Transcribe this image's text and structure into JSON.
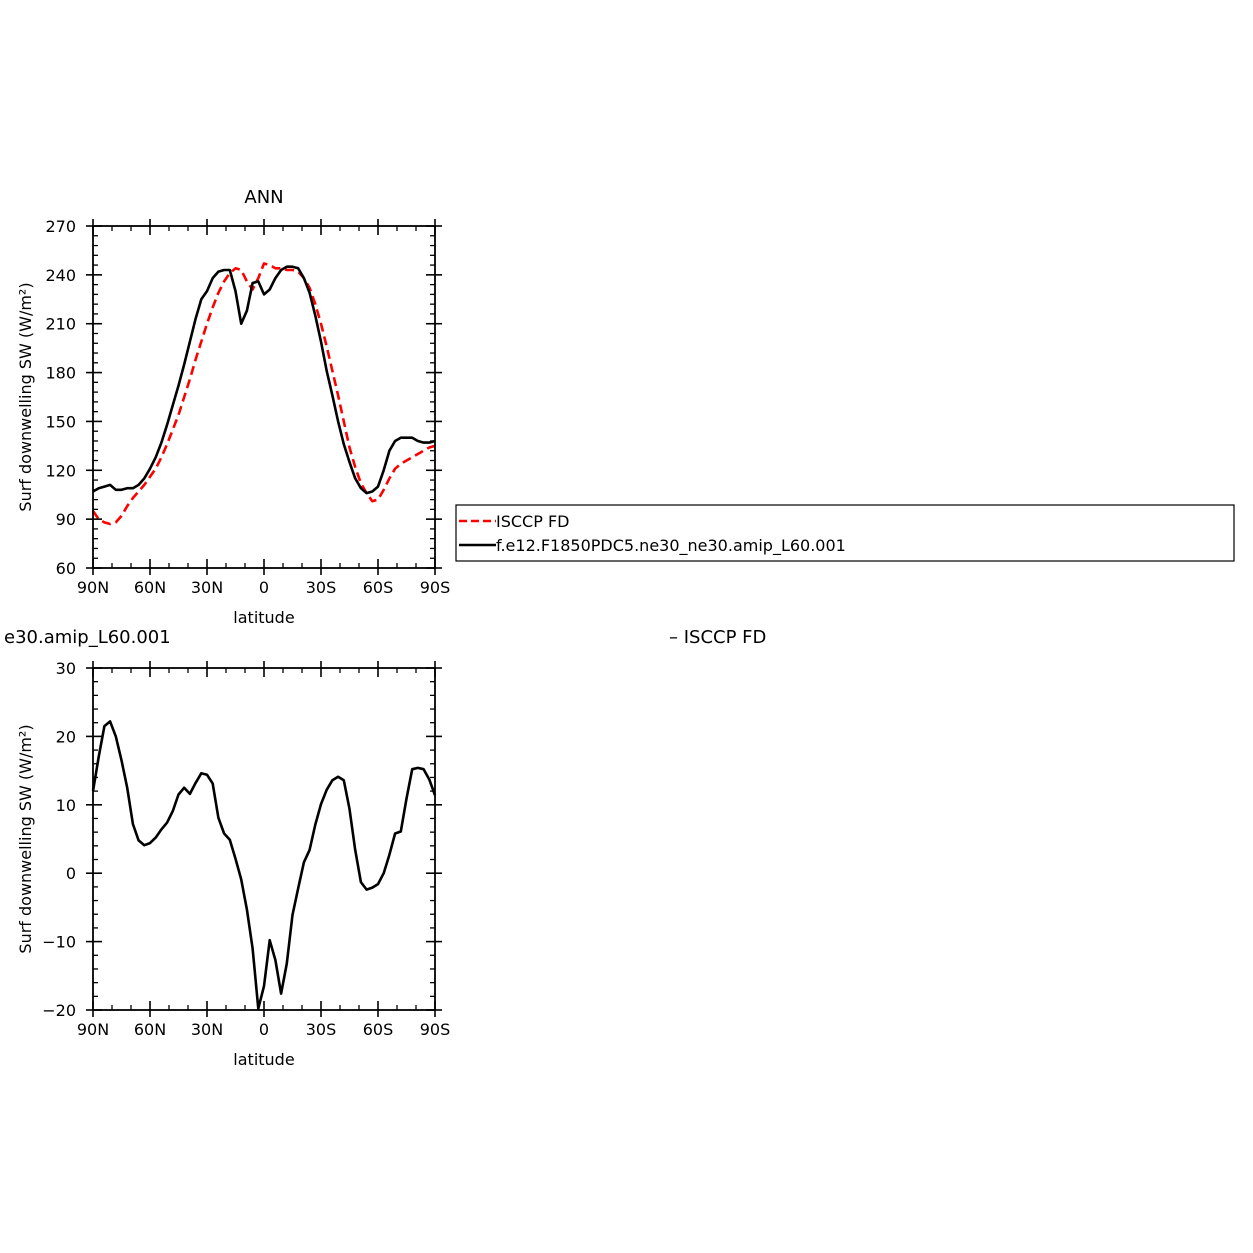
{
  "chart_data": [
    {
      "type": "line",
      "title": "ANN",
      "xlabel": "latitude",
      "ylabel": "Surf downwelling SW (W/m²)",
      "xlim": [
        -90,
        90
      ],
      "ylim": [
        60,
        270
      ],
      "x_ticks": [
        {
          "value": -90,
          "label": "90N"
        },
        {
          "value": -60,
          "label": "60N"
        },
        {
          "value": -30,
          "label": "30N"
        },
        {
          "value": 0,
          "label": "0"
        },
        {
          "value": 30,
          "label": "30S"
        },
        {
          "value": 60,
          "label": "60S"
        },
        {
          "value": 90,
          "label": "90S"
        }
      ],
      "y_ticks": [
        60,
        90,
        120,
        150,
        180,
        210,
        240,
        270
      ],
      "legend": {
        "placement": "right",
        "entries": [
          {
            "label": "ISCCP FD",
            "color": "#ff0000",
            "dash": "dashed"
          },
          {
            "label": "f.e12.F1850PDC5.ne30_ne30.amip_L60.001",
            "color": "#000000",
            "dash": "solid"
          }
        ]
      },
      "series": [
        {
          "name": "ISCCP FD",
          "color": "#ff0000",
          "dash": "dashed",
          "x": [
            -90,
            -87,
            -84,
            -81,
            -78,
            -75,
            -72,
            -69,
            -66,
            -63,
            -60,
            -57,
            -54,
            -51,
            -48,
            -45,
            -42,
            -39,
            -36,
            -33,
            -30,
            -27,
            -24,
            -21,
            -18,
            -15,
            -12,
            -9,
            -6,
            -3,
            0,
            3,
            6,
            9,
            12,
            15,
            18,
            21,
            24,
            27,
            30,
            33,
            36,
            39,
            42,
            45,
            48,
            51,
            54,
            57,
            60,
            63,
            66,
            69,
            72,
            75,
            78,
            81,
            84,
            87,
            90
          ],
          "y": [
            95,
            90,
            88,
            87,
            88,
            92,
            98,
            103,
            107,
            111,
            116,
            121,
            128,
            136,
            145,
            154,
            165,
            176,
            188,
            199,
            210,
            220,
            229,
            236,
            241,
            244,
            243,
            236,
            231,
            238,
            247,
            246,
            244,
            244,
            243,
            243,
            242,
            238,
            232,
            222,
            210,
            196,
            181,
            166,
            150,
            134,
            122,
            112,
            106,
            101,
            102,
            108,
            115,
            121,
            124,
            126,
            128,
            130,
            132,
            134,
            135
          ]
        },
        {
          "name": "f.e12.F1850PDC5.ne30_ne30.amip_L60.001",
          "color": "#000000",
          "dash": "solid",
          "x": [
            -90,
            -87,
            -84,
            -81,
            -78,
            -75,
            -72,
            -69,
            -66,
            -63,
            -60,
            -57,
            -54,
            -51,
            -48,
            -45,
            -42,
            -39,
            -36,
            -33,
            -30,
            -27,
            -24,
            -21,
            -18,
            -15,
            -12,
            -9,
            -6,
            -3,
            0,
            3,
            6,
            9,
            12,
            15,
            18,
            21,
            24,
            27,
            30,
            33,
            36,
            39,
            42,
            45,
            48,
            51,
            54,
            57,
            60,
            63,
            66,
            69,
            72,
            75,
            78,
            81,
            84,
            87,
            90
          ],
          "y": [
            107,
            109,
            110,
            111,
            108,
            108,
            109,
            109,
            111,
            115,
            121,
            128,
            137,
            148,
            160,
            172,
            185,
            199,
            213,
            225,
            230,
            238,
            242,
            243,
            243,
            230,
            210,
            218,
            235,
            236,
            228,
            231,
            238,
            243,
            245,
            245,
            244,
            238,
            229,
            215,
            199,
            181,
            166,
            150,
            136,
            125,
            115,
            109,
            106,
            107,
            110,
            120,
            132,
            138,
            140,
            140,
            140,
            138,
            137,
            137,
            138
          ]
        }
      ]
    },
    {
      "type": "line",
      "title": "e30.amip_L60.001",
      "title_right": "– ISCCP FD",
      "xlabel": "latitude",
      "ylabel": "Surf downwelling SW (W/m²)",
      "xlim": [
        -90,
        90
      ],
      "ylim": [
        -20,
        30
      ],
      "x_ticks": [
        {
          "value": -90,
          "label": "90N"
        },
        {
          "value": -60,
          "label": "60N"
        },
        {
          "value": -30,
          "label": "30N"
        },
        {
          "value": 0,
          "label": "0"
        },
        {
          "value": 30,
          "label": "30S"
        },
        {
          "value": 60,
          "label": "60S"
        },
        {
          "value": 90,
          "label": "90S"
        }
      ],
      "y_ticks": [
        -20,
        -10,
        0,
        10,
        20,
        30
      ],
      "series": [
        {
          "color": "#000000",
          "dash": "solid",
          "x": [
            -90,
            -87,
            -84,
            -81,
            -78,
            -75,
            -72,
            -69,
            -66,
            -63,
            -60,
            -57,
            -54,
            -51,
            -48,
            -45,
            -42,
            -39,
            -36,
            -33,
            -30,
            -27,
            -24,
            -21,
            -18,
            -15,
            -12,
            -9,
            -6,
            -3,
            0,
            3,
            6,
            9,
            12,
            15,
            18,
            21,
            24,
            27,
            30,
            33,
            36,
            39,
            42,
            45,
            48,
            51,
            54,
            57,
            60,
            63,
            66,
            69,
            72,
            75,
            78,
            81,
            84,
            87,
            90
          ],
          "y": [
            12,
            17,
            21.5,
            22.2,
            20,
            16.5,
            12.5,
            7.2,
            4.8,
            4.1,
            4.4,
            5.2,
            6.4,
            7.4,
            9.1,
            11.5,
            12.5,
            11.6,
            13.2,
            14.6,
            14.4,
            13.1,
            8.1,
            5.8,
            4.9,
            2.1,
            -0.9,
            -5.3,
            -11,
            -19.8,
            -16.5,
            -9.8,
            -12.7,
            -17.6,
            -13.2,
            -6.1,
            -2.2,
            1.6,
            3.4,
            7.1,
            10.1,
            12.2,
            13.6,
            14.1,
            13.6,
            9.4,
            3.4,
            -1.3,
            -2.4,
            -2.1,
            -1.6,
            0,
            2.7,
            5.8,
            6.1,
            10.9,
            15.2,
            15.4,
            15.2,
            13.7,
            11.4
          ]
        }
      ]
    }
  ]
}
